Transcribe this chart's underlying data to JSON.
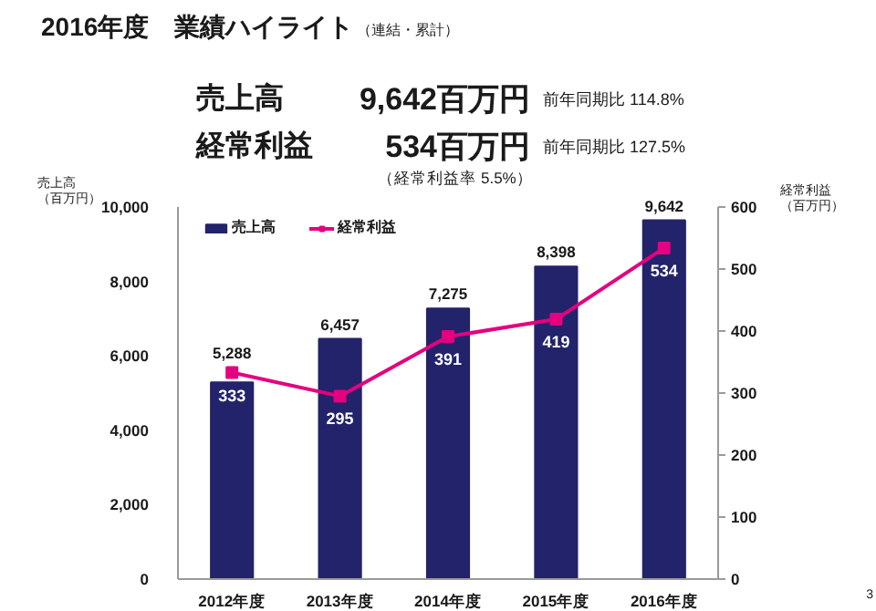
{
  "chart_data": {
    "type": "bar",
    "title": "2016年度　業績ハイライト",
    "subtitle": "（連結・累計）",
    "annotations": [
      "売上高",
      "9,642百万円",
      "前年同期比 114.8%",
      "経常利益",
      "534百万円",
      "前年同期比 127.5%",
      "（経常利益率 5.5%）",
      "3"
    ],
    "ylabel": "売上高（百万円）",
    "y2label": "経常利益（百万円）",
    "categories": [
      "2012年度",
      "2013年度",
      "2014年度",
      "2015年度",
      "2016年度"
    ],
    "series": [
      {
        "name": "売上高",
        "color": "#23236b",
        "values": [
          5288,
          6457,
          7275,
          8398,
          9642
        ],
        "value_labels": [
          "5,288",
          "6,457",
          "7,275",
          "8,398",
          "9,642"
        ]
      },
      {
        "name": "経常利益",
        "type": "line",
        "axis": "y2",
        "color": "#e4007f",
        "values": [
          333,
          295,
          391,
          419,
          534
        ],
        "value_labels": [
          "333",
          "295",
          "391",
          "419",
          "534"
        ]
      }
    ],
    "ylim": [
      0,
      10000
    ],
    "yticks": [
      0,
      {
        "value": 2000,
        "label": "2,000"
      },
      {
        "value": 4000,
        "label": "4,000"
      },
      {
        "value": 6000,
        "label": "6,000"
      },
      {
        "value": 8000,
        "label": "8,000"
      },
      {
        "value": 10000,
        "label": "10,000"
      }
    ],
    "y2lim": [
      0,
      600
    ],
    "y2ticks": [
      0,
      100,
      200,
      300,
      400,
      500,
      600
    ],
    "legend": "top left",
    "grid": false,
    "marker": "square"
  }
}
